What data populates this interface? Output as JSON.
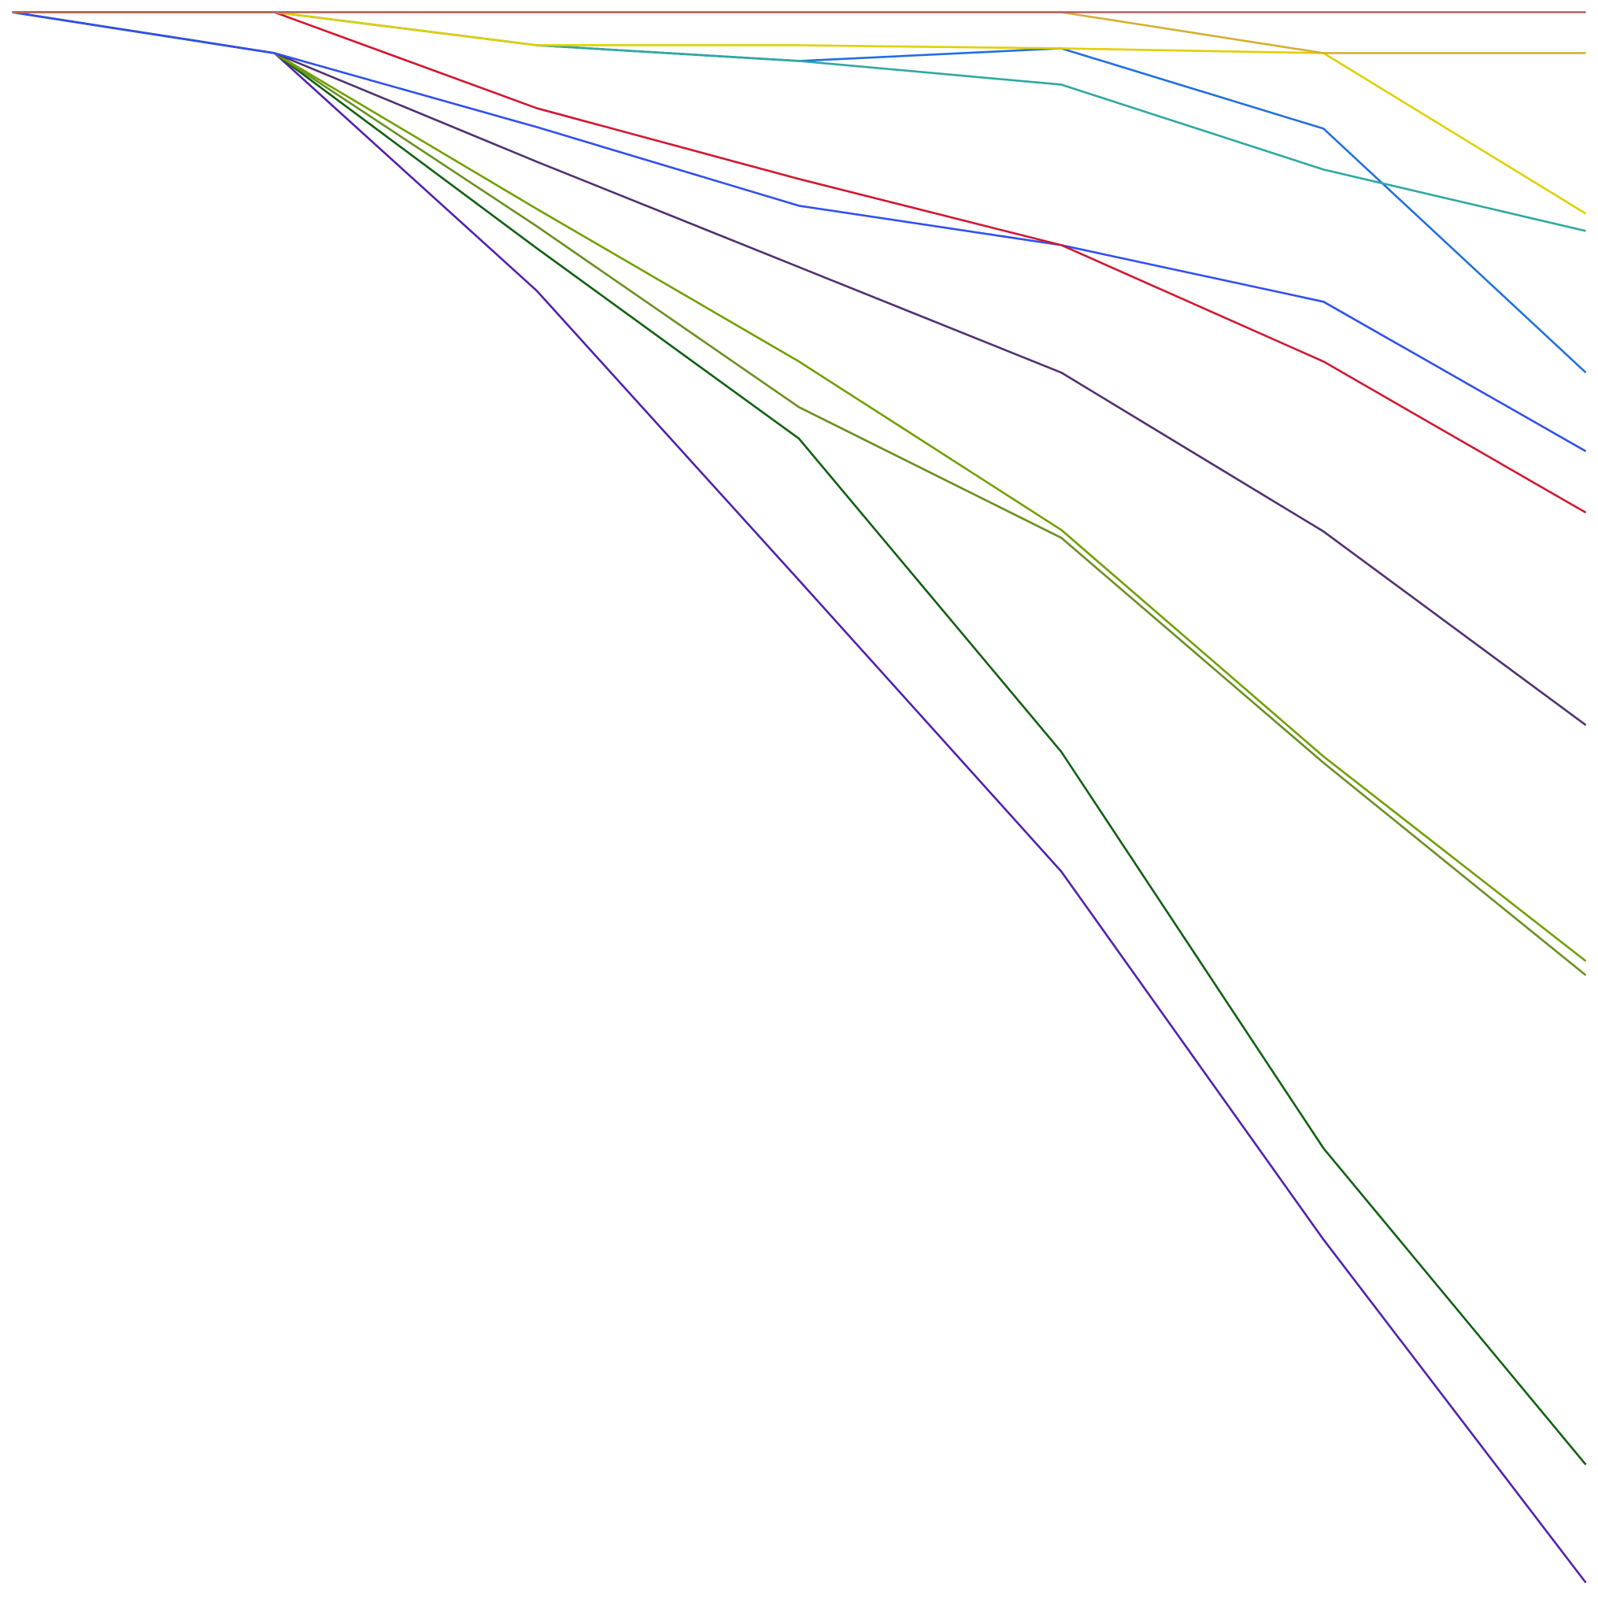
{
  "chart_data": {
    "type": "line",
    "x": [
      0,
      1,
      2,
      3,
      4,
      5,
      6
    ],
    "xlim": [
      0,
      6
    ],
    "ylim": [
      -100,
      0
    ],
    "series": [
      {
        "color": "#5020b0",
        "values": [
          0,
          -2.6,
          -17.7,
          -36.1,
          -54.6,
          -78.0,
          -99.8
        ]
      },
      {
        "color": "#106010",
        "values": [
          0,
          -2.6,
          -15.0,
          -27.1,
          -47.0,
          -72.2,
          -92.3
        ]
      },
      {
        "color": "#6a9020",
        "values": [
          0,
          -2.6,
          -13.6,
          -25.1,
          -33.4,
          -47.7,
          -61.2
        ]
      },
      {
        "color": "#70a000",
        "values": [
          0,
          -2.6,
          -12.5,
          -22.2,
          -32.9,
          -47.3,
          -60.3
        ]
      },
      {
        "color": "#503070",
        "values": [
          0,
          -2.6,
          -9.5,
          -16.2,
          -22.9,
          -33.0,
          -45.3
        ]
      },
      {
        "color": "#3050f0",
        "values": [
          0,
          -2.6,
          -7.3,
          -12.3,
          -14.8,
          -18.4,
          -27.9
        ]
      },
      {
        "color": "#d01830",
        "values": [
          0,
          0,
          -6.1,
          -10.6,
          -14.8,
          -22.2,
          -31.8
        ]
      },
      {
        "color": "#2070e0",
        "values": [
          0,
          0,
          -2.1,
          -3.1,
          -2.3,
          -7.4,
          -22.9
        ]
      },
      {
        "color": "#30a8a0",
        "values": [
          0,
          0,
          -2.1,
          -3.1,
          -4.6,
          -10.0,
          -13.9
        ]
      },
      {
        "color": "#e0d000",
        "values": [
          0,
          0,
          -2.1,
          -2.1,
          -2.3,
          -2.6,
          -12.8
        ]
      },
      {
        "color": "#d4b030",
        "values": [
          0,
          0,
          0,
          0,
          0,
          -2.6,
          -2.6
        ]
      },
      {
        "color": "#b06060",
        "values": [
          0,
          0,
          0,
          0,
          0,
          0,
          0
        ]
      }
    ]
  }
}
